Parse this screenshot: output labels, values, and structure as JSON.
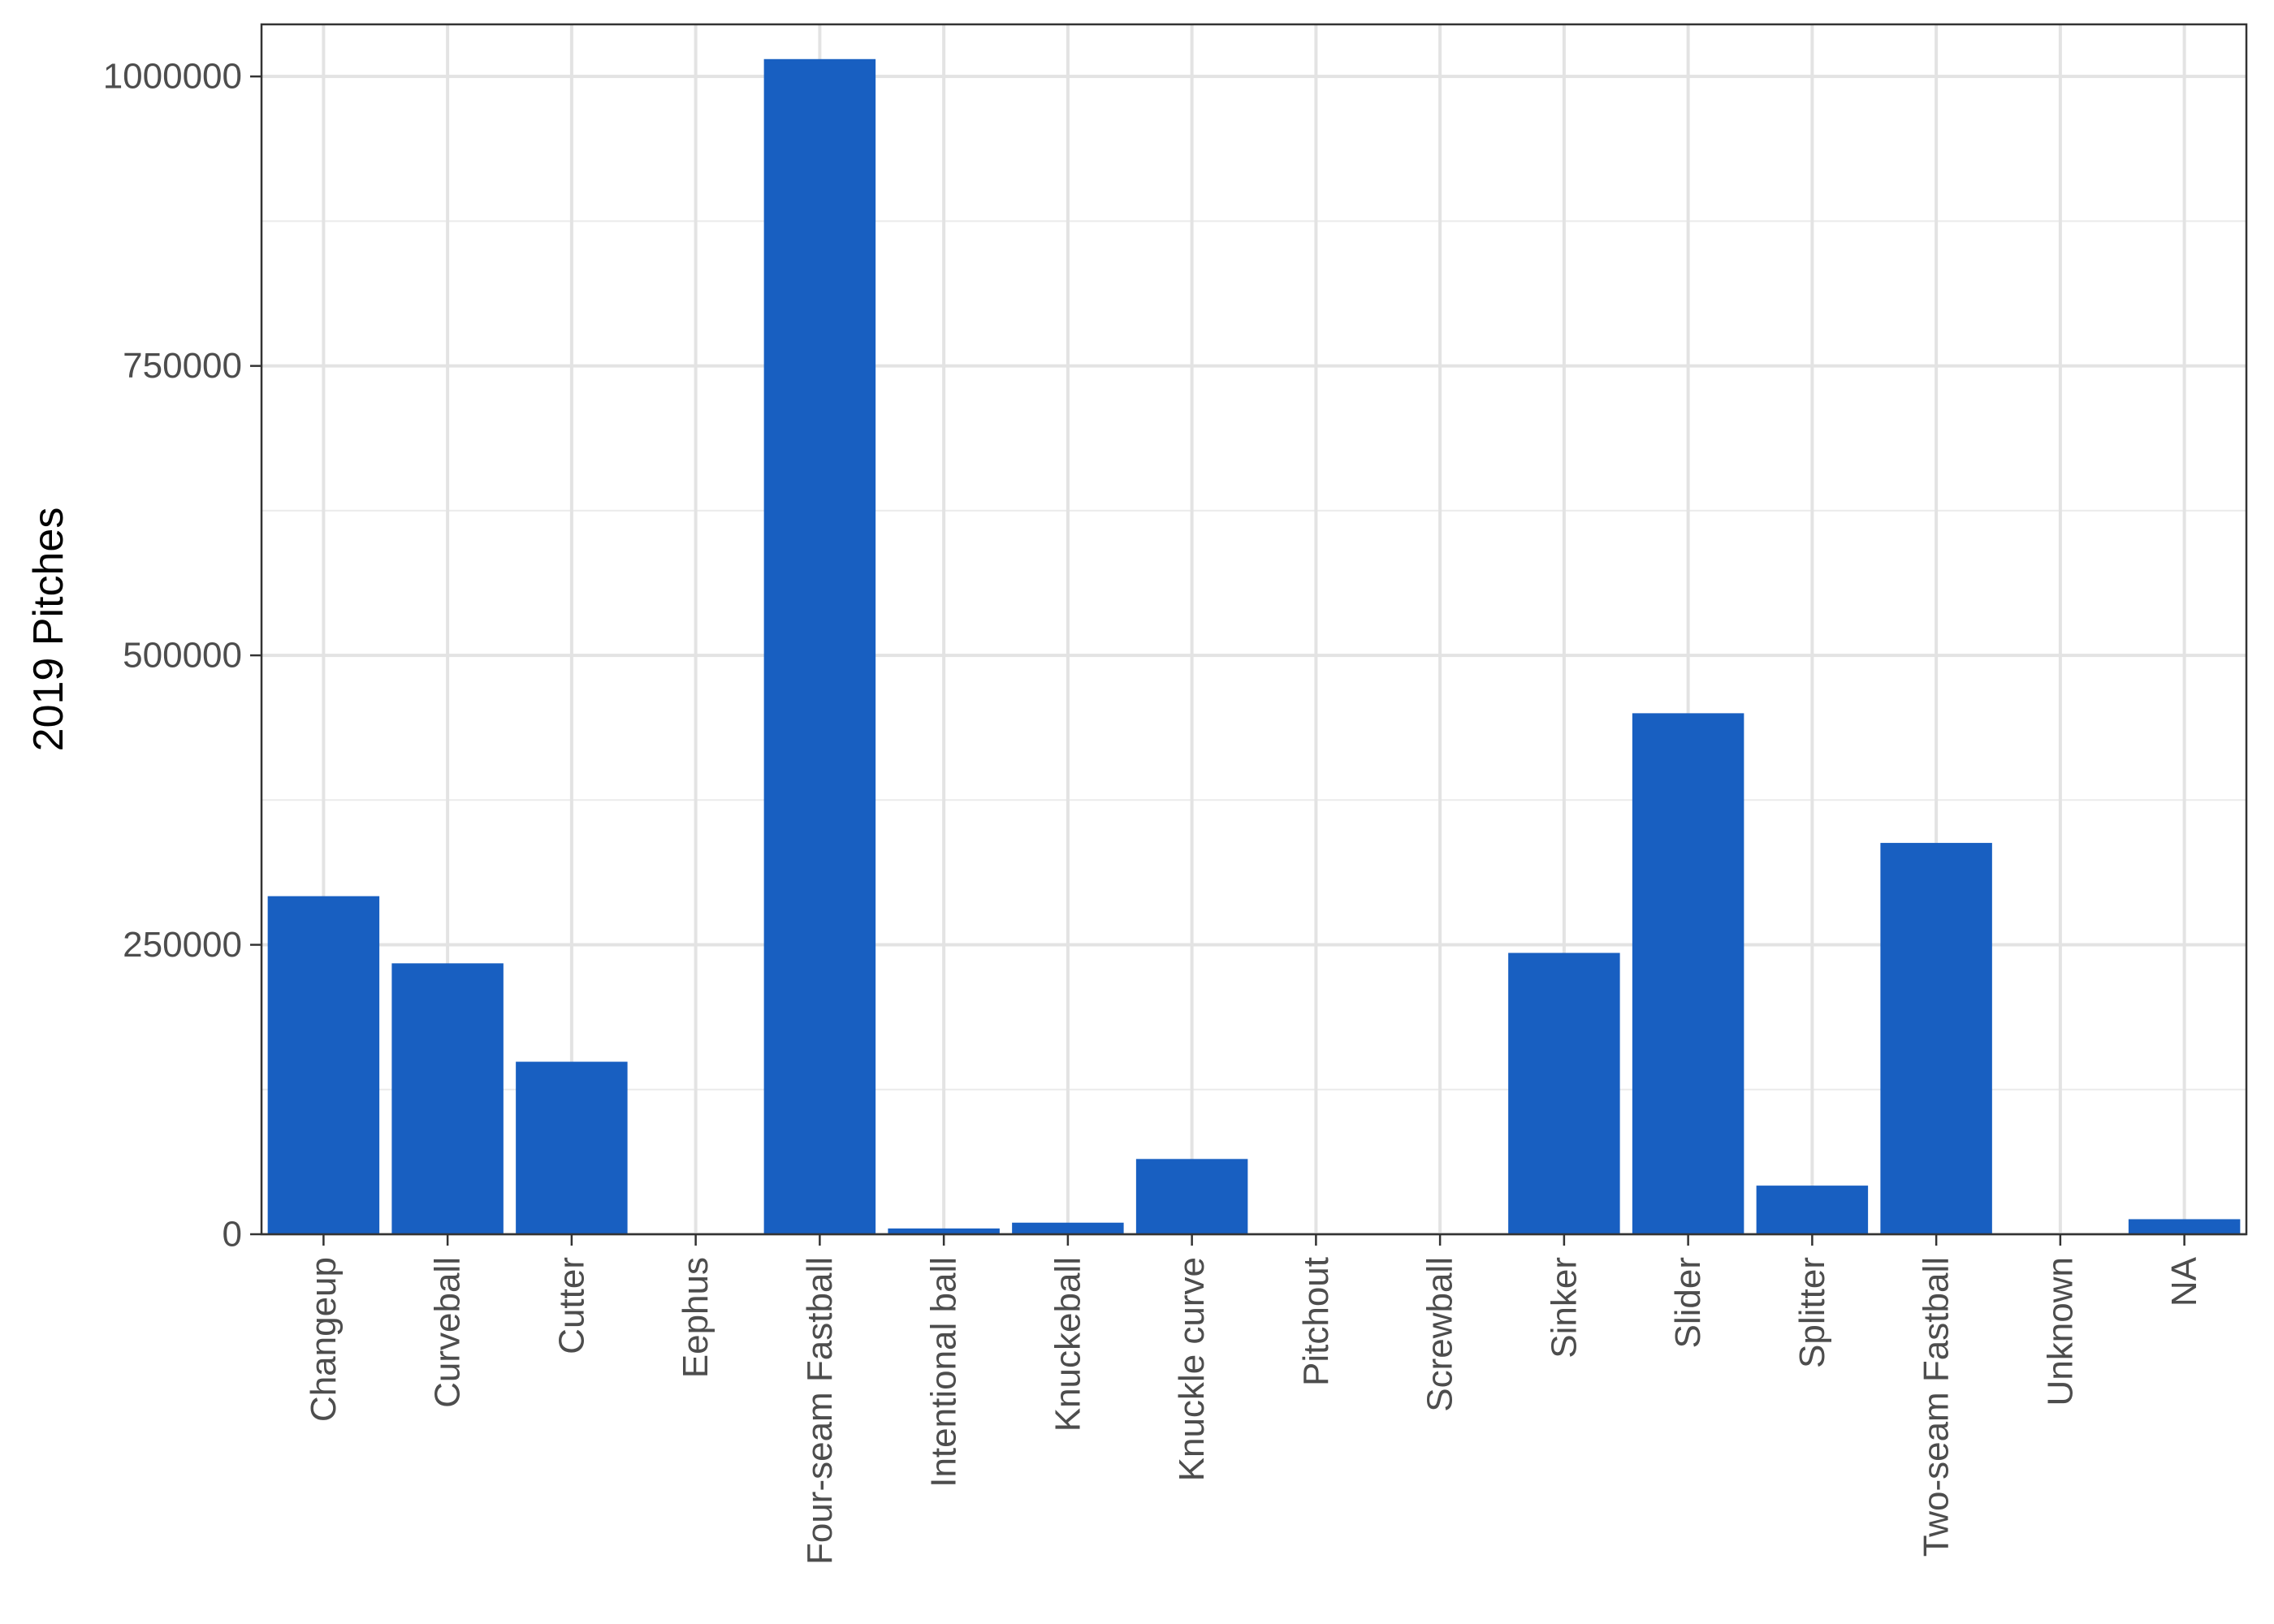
{
  "chart_data": {
    "type": "bar",
    "title": "",
    "xlabel": "",
    "ylabel": "2019 Pitches",
    "categories": [
      "Changeup",
      "Curveball",
      "Cutter",
      "Eephus",
      "Four-seam Fastball",
      "Intentional ball",
      "Knuckeball",
      "Knuckle curve",
      "Pitchout",
      "Screwball",
      "Sinker",
      "Slider",
      "Splitter",
      "Two-seam Fastball",
      "Unknown",
      "NA"
    ],
    "values": [
      292000,
      234000,
      149000,
      0,
      1015000,
      5000,
      10000,
      65000,
      0,
      0,
      243000,
      450000,
      42000,
      338000,
      0,
      13000
    ],
    "ylim": [
      0,
      1045000
    ],
    "yticks": [
      0,
      250000,
      500000,
      750000,
      1000000
    ],
    "ytick_labels": [
      "0",
      "250000",
      "500000",
      "750000",
      "1000000"
    ],
    "grid": true,
    "bar_color": "#185FC1"
  }
}
